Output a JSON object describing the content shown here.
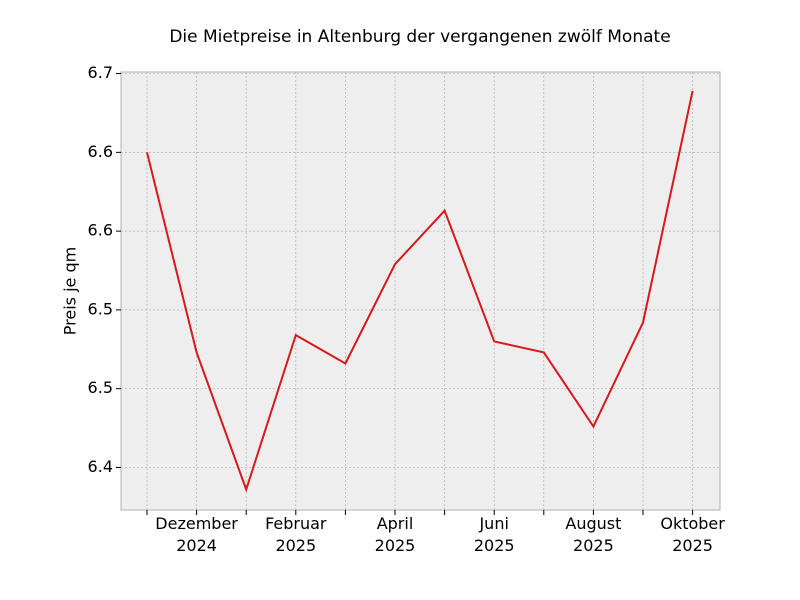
{
  "chart_data": {
    "type": "line",
    "title": "Die Mietpreise in Altenburg der vergangenen zwölf Monate",
    "y_label": "Preis je qm",
    "categories": [
      null,
      "Dezember\n2024",
      null,
      "Februar\n2025",
      null,
      "April\n2025",
      null,
      "Juni\n2025",
      null,
      "August\n2025",
      null,
      "Oktober\n2025"
    ],
    "series": [
      {
        "name": "Preis je qm",
        "color": "#d7191c",
        "values": [
          6.6,
          6.473,
          6.386,
          6.484,
          6.466,
          6.529,
          6.563,
          6.48,
          6.473,
          6.426,
          6.492,
          6.639
        ]
      }
    ],
    "ylim": [
      6.373,
      6.651
    ],
    "yticks": [
      {
        "value": 6.4,
        "label": "6.4"
      },
      {
        "value": 6.45,
        "label": "6.5"
      },
      {
        "value": 6.5,
        "label": "6.5"
      },
      {
        "value": 6.55,
        "label": "6.6"
      },
      {
        "value": 6.6,
        "label": "6.6"
      },
      {
        "value": 6.65,
        "label": "6.7"
      }
    ],
    "grid": true
  }
}
